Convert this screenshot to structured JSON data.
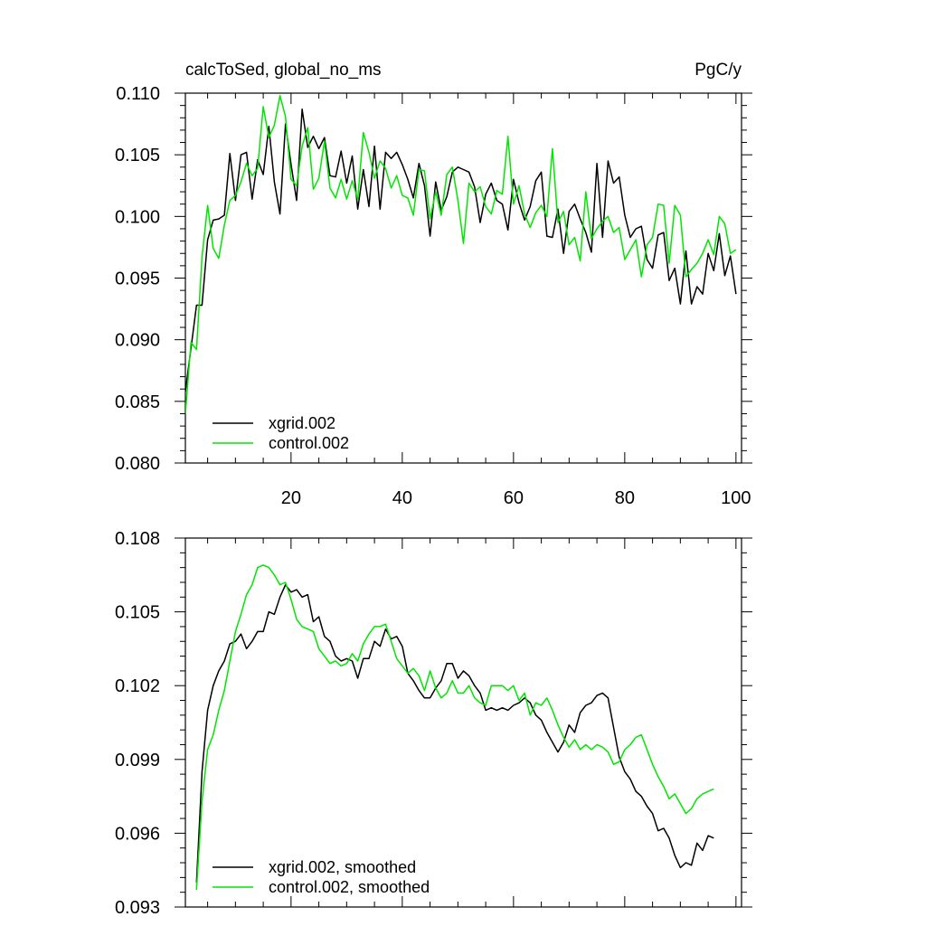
{
  "chart_data": [
    {
      "type": "line",
      "title_left": "calcToSed, global_no_ms",
      "title_right": "PgC/y",
      "xlim": [
        1,
        101
      ],
      "ylim": [
        0.08,
        0.11
      ],
      "x_ticks": [
        20,
        40,
        60,
        80,
        100
      ],
      "x_tick_labels": [
        "20",
        "40",
        "60",
        "80",
        "100"
      ],
      "y_ticks": [
        0.08,
        0.085,
        0.09,
        0.095,
        0.1,
        0.105,
        0.11
      ],
      "y_tick_labels": [
        "0.080",
        "0.085",
        "0.090",
        "0.095",
        "0.100",
        "0.105",
        "0.110"
      ],
      "legend_position": "bottom-left",
      "series": [
        {
          "name": "xgrid.002",
          "color": "#000000",
          "x_start": 1,
          "values": [
            0.0858,
            0.0893,
            0.0928,
            0.0928,
            0.0981,
            0.0997,
            0.0998,
            0.1001,
            0.1051,
            0.1013,
            0.105,
            0.1052,
            0.1014,
            0.1046,
            0.1034,
            0.1073,
            0.1028,
            0.1002,
            0.1075,
            0.1042,
            0.1013,
            0.1087,
            0.1056,
            0.1065,
            0.1055,
            0.1064,
            0.1033,
            0.1032,
            0.1053,
            0.1027,
            0.1049,
            0.1006,
            0.1038,
            0.1008,
            0.1057,
            0.1006,
            0.1052,
            0.1047,
            0.1052,
            0.1042,
            0.103,
            0.1015,
            0.1043,
            0.1025,
            0.0984,
            0.1028,
            0.1005,
            0.1016,
            0.1036,
            0.104,
            0.1038,
            0.1036,
            0.1024,
            0.0995,
            0.1018,
            0.1027,
            0.1013,
            0.101,
            0.0989,
            0.103,
            0.1011,
            0.0997,
            0.1008,
            0.1029,
            0.1036,
            0.0984,
            0.0983,
            0.1006,
            0.097,
            0.1004,
            0.101,
            0.0998,
            0.0987,
            0.0971,
            0.1043,
            0.0983,
            0.1045,
            0.1027,
            0.1032,
            0.1001,
            0.0983,
            0.099,
            0.0992,
            0.0965,
            0.0958,
            0.0985,
            0.0987,
            0.0948,
            0.0958,
            0.0929,
            0.0972,
            0.0929,
            0.0943,
            0.0937,
            0.097,
            0.0956,
            0.0986,
            0.0952,
            0.0968,
            0.0937
          ]
        },
        {
          "name": "control.002",
          "color": "#00e600",
          "x_start": 1,
          "values": [
            0.084,
            0.0898,
            0.0892,
            0.0967,
            0.1009,
            0.0974,
            0.0966,
            0.0993,
            0.1013,
            0.1017,
            0.1028,
            0.1043,
            0.1033,
            0.1039,
            0.1089,
            0.1064,
            0.1074,
            0.1098,
            0.1081,
            0.103,
            0.1025,
            0.1057,
            0.1072,
            0.1022,
            0.1031,
            0.1061,
            0.1023,
            0.1015,
            0.103,
            0.1014,
            0.1029,
            0.1014,
            0.1068,
            0.1052,
            0.1031,
            0.1045,
            0.1039,
            0.1023,
            0.1033,
            0.1017,
            0.1015,
            0.1001,
            0.1038,
            0.1037,
            0.0998,
            0.102,
            0.1001,
            0.1034,
            0.104,
            0.1013,
            0.0978,
            0.1027,
            0.102,
            0.1024,
            0.1008,
            0.1002,
            0.1021,
            0.1018,
            0.1065,
            0.101,
            0.1025,
            0.1002,
            0.0991,
            0.1003,
            0.1009,
            0.1,
            0.1055,
            0.0995,
            0.1004,
            0.0977,
            0.0983,
            0.0964,
            0.102,
            0.0982,
            0.099,
            0.0996,
            0.1,
            0.0987,
            0.0991,
            0.0965,
            0.0973,
            0.0981,
            0.0951,
            0.0977,
            0.0983,
            0.101,
            0.1009,
            0.0962,
            0.1009,
            0.1001,
            0.0951,
            0.0957,
            0.0962,
            0.097,
            0.0981,
            0.0969,
            0.1,
            0.0994,
            0.097,
            0.0973
          ]
        }
      ]
    },
    {
      "type": "line",
      "xlim": [
        1,
        101
      ],
      "ylim": [
        0.093,
        0.108
      ],
      "x_ticks": [
        20,
        40,
        60,
        80,
        100
      ],
      "y_ticks": [
        0.093,
        0.096,
        0.099,
        0.102,
        0.105,
        0.108
      ],
      "y_tick_labels": [
        "0.093",
        "0.096",
        "0.099",
        "0.102",
        "0.105",
        "0.108"
      ],
      "legend_position": "bottom-left",
      "series": [
        {
          "name": "xgrid.002, smoothed",
          "color": "#000000",
          "x_start": 3,
          "values": [
            0.094,
            0.0985,
            0.101,
            0.102,
            0.1026,
            0.103,
            0.1037,
            0.1038,
            0.1041,
            0.1035,
            0.1038,
            0.1042,
            0.1042,
            0.105,
            0.1049,
            0.1056,
            0.1061,
            0.1058,
            0.1059,
            0.1056,
            0.1057,
            0.1046,
            0.1048,
            0.104,
            0.1038,
            0.1032,
            0.103,
            0.1031,
            0.103,
            0.1023,
            0.1031,
            0.1031,
            0.1038,
            0.1036,
            0.1043,
            0.1039,
            0.104,
            0.1036,
            0.1025,
            0.1022,
            0.1018,
            0.1015,
            0.1015,
            0.1019,
            0.1022,
            0.1029,
            0.1029,
            0.1023,
            0.1026,
            0.1024,
            0.102,
            0.1017,
            0.101,
            0.1011,
            0.101,
            0.1011,
            0.101,
            0.1012,
            0.1013,
            0.1015,
            0.1013,
            0.1008,
            0.1006,
            0.1001,
            0.0997,
            0.0993,
            0.0997,
            0.1004,
            0.1001,
            0.1009,
            0.1012,
            0.1013,
            0.1016,
            0.1017,
            0.1015,
            0.1003,
            0.0991,
            0.0985,
            0.0982,
            0.0977,
            0.0975,
            0.0971,
            0.0968,
            0.0961,
            0.0962,
            0.0958,
            0.0951,
            0.0946,
            0.0948,
            0.0947,
            0.0956,
            0.0953,
            0.0959,
            0.0958
          ]
        },
        {
          "name": "control.002, smoothed",
          "color": "#00e600",
          "x_start": 3,
          "values": [
            0.0937,
            0.0973,
            0.0994,
            0.1,
            0.101,
            0.1018,
            0.103,
            0.1042,
            0.1049,
            0.1057,
            0.1061,
            0.1068,
            0.1069,
            0.1068,
            0.1065,
            0.1061,
            0.1062,
            0.1055,
            0.1047,
            0.1044,
            0.1043,
            0.1042,
            0.1035,
            0.1032,
            0.1029,
            0.103,
            0.1028,
            0.1029,
            0.1033,
            0.103,
            0.1037,
            0.1041,
            0.1044,
            0.1044,
            0.1045,
            0.1038,
            0.1031,
            0.1028,
            0.1025,
            0.1027,
            0.1024,
            0.1018,
            0.1026,
            0.1019,
            0.1015,
            0.1017,
            0.1022,
            0.1017,
            0.1017,
            0.102,
            0.1015,
            0.1013,
            0.1012,
            0.102,
            0.102,
            0.102,
            0.1018,
            0.102,
            0.1014,
            0.1017,
            0.1008,
            0.1013,
            0.1012,
            0.1015,
            0.101,
            0.1004,
            0.0999,
            0.0995,
            0.0998,
            0.0994,
            0.0996,
            0.0994,
            0.0996,
            0.0995,
            0.0993,
            0.0988,
            0.0989,
            0.0994,
            0.0996,
            0.0999,
            0.1,
            0.0994,
            0.0988,
            0.0983,
            0.0979,
            0.0974,
            0.0976,
            0.0972,
            0.0968,
            0.097,
            0.0974,
            0.0976,
            0.0977,
            0.0978
          ]
        }
      ]
    }
  ]
}
